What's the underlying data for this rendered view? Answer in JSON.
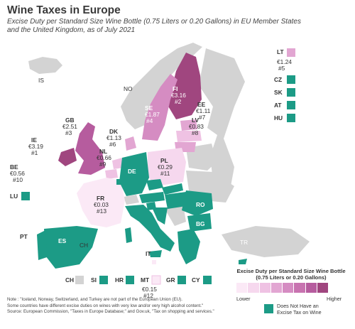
{
  "title": "Wine Taxes in Europe",
  "subtitle": "Excise Duty per Standard Size Wine Bottle (0.75 Liters or 0.20 Gallons) in EU Member States and the United Kingdom, as of July 2021",
  "colors": {
    "no_tax": "#1c9b86",
    "no_data": "#d3d3d3",
    "scale": [
      "#fbe9f6",
      "#f6d8ee",
      "#efc2e3",
      "#e2a6d2",
      "#d58cc2",
      "#c873b0",
      "#b65c9e",
      "#a0467f"
    ]
  },
  "taxed_countries": [
    {
      "code": "LT",
      "value": "€1.24",
      "rank": "#5"
    },
    {
      "code": "FI",
      "value": "€3.16",
      "rank": "#2"
    },
    {
      "code": "SE",
      "value": "€1.87",
      "rank": "#4"
    },
    {
      "code": "EE",
      "value": "€1.11",
      "rank": "#7"
    },
    {
      "code": "LV",
      "value": "€0.83",
      "rank": "#8"
    },
    {
      "code": "GB",
      "value": "€2.51",
      "rank": "#3"
    },
    {
      "code": "IE",
      "value": "€3.19",
      "rank": "#1"
    },
    {
      "code": "DK",
      "value": "€1.13",
      "rank": "#6"
    },
    {
      "code": "NL",
      "value": "€0.66",
      "rank": "#9"
    },
    {
      "code": "PL",
      "value": "€0.29",
      "rank": "#11"
    },
    {
      "code": "BE",
      "value": "€0.56",
      "rank": "#10"
    },
    {
      "code": "FR",
      "value": "€0.03",
      "rank": "#13"
    },
    {
      "code": "MT",
      "value": "€0.15",
      "rank": "#12"
    }
  ],
  "no_tax_countries": [
    "CZ",
    "SK",
    "AT",
    "HU",
    "LU",
    "DE",
    "RO",
    "BG",
    "ES",
    "PT",
    "IT",
    "SI",
    "HR",
    "GR",
    "CY"
  ],
  "other_countries": [
    "IS",
    "NO",
    "CH",
    "TR"
  ],
  "legend": {
    "title": "Excise Duty per Standard Size Wine Bottle (0.75 Liters or 0.20 Gallons)",
    "low": "Lower",
    "high": "Higher",
    "no_tax": "Does Not Have an Excise Tax on Wine"
  },
  "notes": [
    "Note : \"Iceland, Norway, Switzerland, and Turkey are not part of the European Union (EU).",
    "Some countries have different excise duties on wines with very low and/or very high alcohol content.\"",
    "Source: European Commission, \"Taxes in Europe Database;\" and Gov.uk, \"Tax on shopping and services.\""
  ]
}
